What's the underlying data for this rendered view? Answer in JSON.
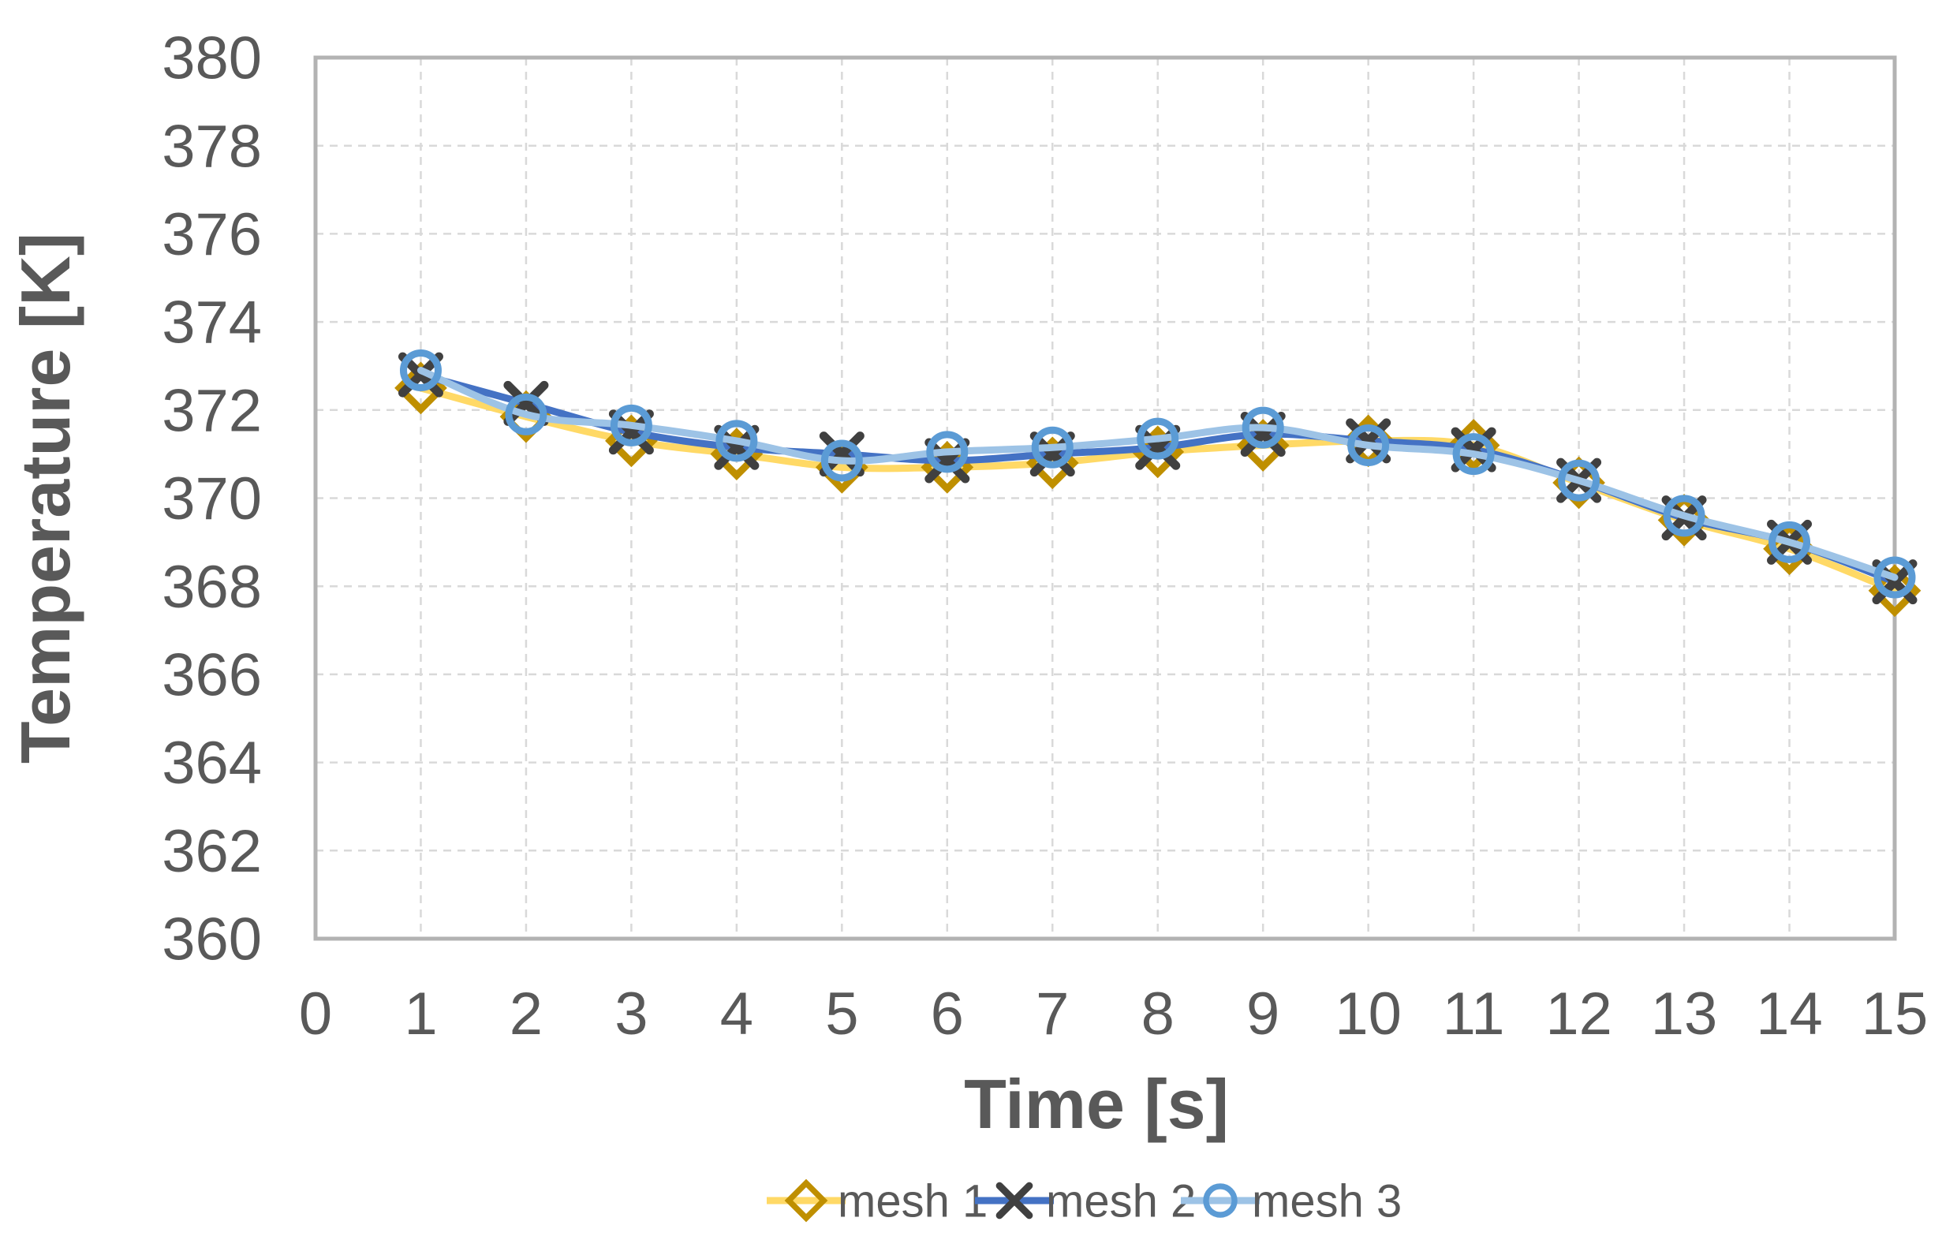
{
  "chart_data": {
    "type": "line",
    "title": "",
    "xlabel": "Time [s]",
    "ylabel": "Temperature [K]",
    "xlim": [
      0,
      15
    ],
    "ylim": [
      360,
      380
    ],
    "xticks": [
      0,
      1,
      2,
      3,
      4,
      5,
      6,
      7,
      8,
      9,
      10,
      11,
      12,
      13,
      14,
      15
    ],
    "yticks": [
      360,
      362,
      364,
      366,
      368,
      370,
      372,
      374,
      376,
      378,
      380
    ],
    "grid": "dashed",
    "smooth_lines": true,
    "legend_position": "bottom-center",
    "x": [
      1,
      2,
      3,
      4,
      5,
      6,
      7,
      8,
      9,
      10,
      11,
      12,
      13,
      14,
      15
    ],
    "series": [
      {
        "name": "mesh 1",
        "marker": "diamond",
        "line_color": "#FFD966",
        "marker_color": "#BF8F00",
        "values": [
          372.5,
          371.85,
          371.3,
          371.0,
          370.7,
          370.7,
          370.8,
          371.05,
          371.2,
          371.3,
          371.2,
          370.35,
          369.5,
          368.85,
          367.9
        ]
      },
      {
        "name": "mesh 2",
        "marker": "x",
        "line_color": "#4472C4",
        "marker_color": "#404040",
        "values": [
          372.8,
          372.15,
          371.5,
          371.15,
          371.0,
          370.85,
          371.0,
          371.15,
          371.45,
          371.3,
          371.1,
          370.4,
          369.55,
          369.0,
          368.1
        ]
      },
      {
        "name": "mesh 3",
        "marker": "circle",
        "line_color": "#9DC3E6",
        "marker_color": "#5B9BD5",
        "values": [
          372.9,
          371.9,
          371.65,
          371.3,
          370.85,
          371.05,
          371.15,
          371.35,
          371.6,
          371.2,
          371.0,
          370.4,
          369.6,
          369.0,
          368.2
        ]
      }
    ]
  },
  "style": {
    "text_color": "#595959",
    "grid_color": "#D9D9D9",
    "border_color": "#B3B3B3",
    "background": "#FFFFFF"
  }
}
